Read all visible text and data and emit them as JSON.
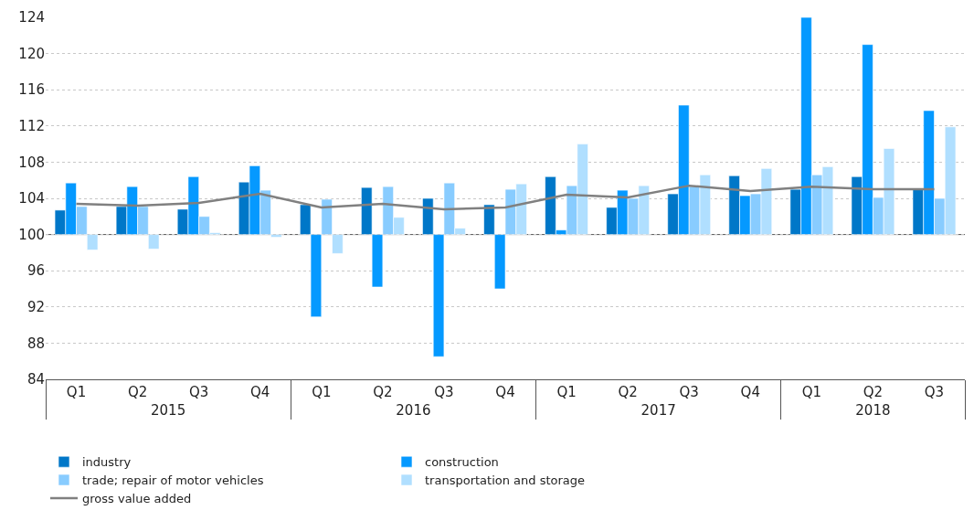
{
  "chart_data": {
    "type": "bar",
    "categories": [
      "Q1",
      "Q2",
      "Q3",
      "Q4",
      "Q1",
      "Q2",
      "Q3",
      "Q4",
      "Q1",
      "Q2",
      "Q3",
      "Q4",
      "Q1",
      "Q2",
      "Q3"
    ],
    "annotations": [
      "2015",
      "2016",
      "2017",
      "2018"
    ],
    "series": [
      {
        "name": "industry",
        "color": "#0077c8",
        "base": [
          100,
          100,
          100,
          100,
          100,
          100,
          100,
          100,
          100,
          100,
          100,
          100,
          100,
          100,
          100
        ],
        "values": [
          2.7,
          3.1,
          2.8,
          5.8,
          3.3,
          5.2,
          4.0,
          3.3,
          6.4,
          3.0,
          4.5,
          6.5,
          5.0,
          6.4,
          5.0
        ]
      },
      {
        "name": "construction",
        "color": "#0599ff",
        "base": [
          100,
          100,
          100,
          100,
          100,
          100,
          100,
          100,
          100,
          100,
          100,
          100,
          100,
          100,
          100
        ],
        "values": [
          5.7,
          5.3,
          6.4,
          7.6,
          -9.1,
          -5.8,
          -13.5,
          -6.0,
          0.5,
          4.9,
          14.3,
          4.3,
          24.0,
          21.0,
          13.7
        ]
      },
      {
        "name": "trade; repair of motor vehicles",
        "color": "#88ccff",
        "base": [
          100,
          100,
          100,
          100,
          100,
          100,
          100,
          100,
          100,
          100,
          100,
          100,
          100,
          100,
          100
        ],
        "values": [
          3.1,
          3.1,
          2.0,
          4.9,
          3.9,
          5.3,
          5.7,
          5.0,
          5.4,
          4.0,
          5.3,
          4.5,
          6.6,
          4.1,
          4.0
        ]
      },
      {
        "name": "transportation and storage",
        "color": "#b0dfff",
        "base": [
          100,
          100,
          100,
          100,
          100,
          100,
          100,
          100,
          100,
          100,
          100,
          100,
          100,
          100,
          100
        ],
        "values": [
          -1.7,
          -1.6,
          0.2,
          -0.3,
          -2.1,
          1.9,
          0.7,
          5.6,
          10.0,
          5.4,
          6.6,
          7.3,
          7.5,
          9.5,
          11.9
        ]
      },
      {
        "name": "gross value added",
        "type": "line",
        "color": "#808080",
        "values": [
          103.4,
          103.2,
          103.5,
          104.5,
          103.0,
          103.4,
          102.8,
          103.0,
          104.4,
          104.1,
          105.4,
          104.8,
          105.3,
          105.0,
          105.0
        ]
      }
    ],
    "ylim": [
      84,
      124
    ],
    "yticks": [
      84,
      88,
      92,
      96,
      100,
      104,
      108,
      112,
      116,
      120,
      124
    ],
    "ref_lines": [
      {
        "axis": "y",
        "value": 100,
        "color": "#555555"
      }
    ],
    "grid": "y",
    "legend": "bottom",
    "marker": "none",
    "line_style": "solid"
  }
}
